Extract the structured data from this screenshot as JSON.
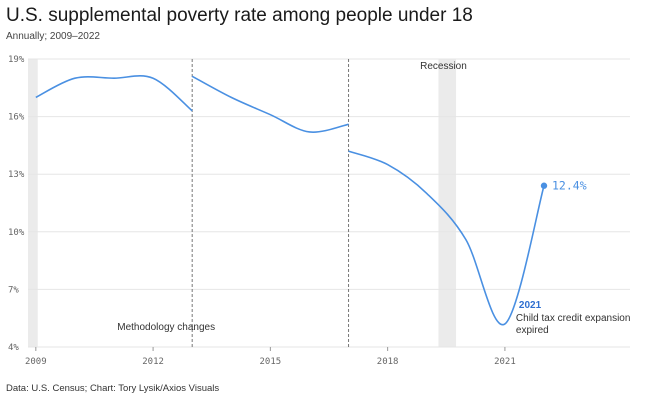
{
  "header": {
    "title": "U.S. supplemental poverty rate among people under 18",
    "subtitle": "Annually; 2009–2022"
  },
  "footer": {
    "source": "Data: U.S. Census; Chart: Tory Lysik/Axios Visuals"
  },
  "colors": {
    "line": "#4a90e2",
    "recession": "#ebebeb",
    "grid": "#e6e6e6"
  },
  "chart_data": {
    "type": "line",
    "title": "U.S. supplemental poverty rate among people under 18",
    "xlabel": "",
    "ylabel": "",
    "xlim": [
      2008.8,
      2024.2
    ],
    "ylim": [
      4,
      19
    ],
    "x_ticks": [
      2009,
      2012,
      2015,
      2018,
      2021
    ],
    "y_ticks": [
      4,
      7,
      10,
      13,
      16,
      19
    ],
    "y_tick_suffix": "%",
    "grid": true,
    "segments": [
      {
        "x": [
          2009,
          2010,
          2011,
          2012,
          2013
        ],
        "y": [
          17.0,
          18.0,
          18.0,
          18.0,
          16.3
        ]
      },
      {
        "x": [
          2013,
          2014,
          2015,
          2016,
          2017
        ],
        "y": [
          18.1,
          17.0,
          16.1,
          15.2,
          15.6
        ]
      },
      {
        "x": [
          2017,
          2018,
          2019,
          2020,
          2021,
          2022
        ],
        "y": [
          14.2,
          13.5,
          12.0,
          9.6,
          5.2,
          12.4
        ]
      }
    ],
    "shaded_regions": [
      {
        "x0": 2008.8,
        "x1": 2009.05,
        "label": ""
      },
      {
        "x0": 2019.3,
        "x1": 2019.75,
        "label": "Recession"
      }
    ],
    "vertical_lines": [
      {
        "x": 2013,
        "label": "Methodology changes"
      },
      {
        "x": 2017,
        "label": ""
      }
    ],
    "end_label": {
      "x": 2022,
      "y": 12.4,
      "text": "12.4%"
    },
    "annotation": {
      "x": 2021,
      "year": "2021",
      "lines": [
        "Child tax credit expansion",
        "expired"
      ]
    }
  }
}
